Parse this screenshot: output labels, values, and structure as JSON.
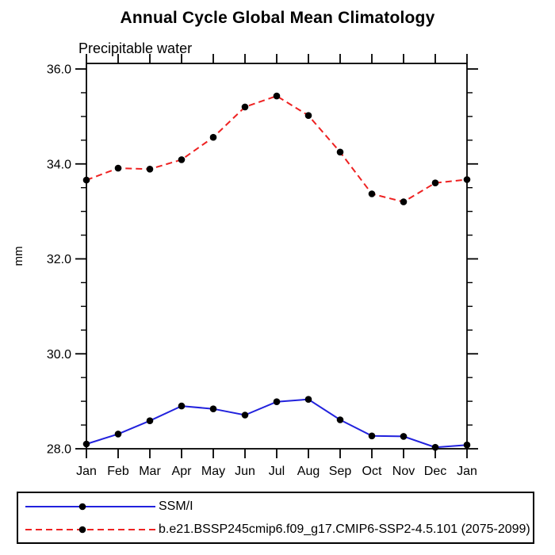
{
  "title": "Annual Cycle Global Mean Climatology",
  "chart_data": {
    "type": "line",
    "title": "Annual Cycle Global Mean Climatology",
    "subtitle": "Precipitable water",
    "ylabel": "mm",
    "xlabel": "",
    "categories": [
      "Jan",
      "Feb",
      "Mar",
      "Apr",
      "May",
      "Jun",
      "Jul",
      "Aug",
      "Sep",
      "Oct",
      "Nov",
      "Dec",
      "Jan"
    ],
    "ylim": [
      28.0,
      36.0
    ],
    "ytick_major": [
      28.0,
      30.0,
      32.0,
      34.0,
      36.0
    ],
    "ytick_major_labels": [
      "28.0",
      "30.0",
      "32.0",
      "34.0",
      "36.0"
    ],
    "ytick_minor_step": 0.5,
    "grid": "off",
    "legend_position": "bottom",
    "marker_color": "#000000",
    "axis_color": "#000000",
    "series": [
      {
        "name": "SSM/I",
        "color": "#2222dd",
        "line_style": "solid",
        "marker": "circle",
        "values": [
          28.1,
          28.31,
          28.59,
          28.9,
          28.84,
          28.71,
          28.99,
          29.04,
          28.61,
          28.27,
          28.26,
          28.03,
          28.08
        ]
      },
      {
        "name": "b.e21.BSSP245cmip6.f09_g17.CMIP6-SSP2-4.5.101 (2075-2099)",
        "color": "#ee2222",
        "line_style": "dashed",
        "marker": "circle",
        "values": [
          33.66,
          33.91,
          33.89,
          34.09,
          34.56,
          35.2,
          35.43,
          35.02,
          34.25,
          33.37,
          33.2,
          33.6,
          33.67
        ]
      }
    ]
  }
}
